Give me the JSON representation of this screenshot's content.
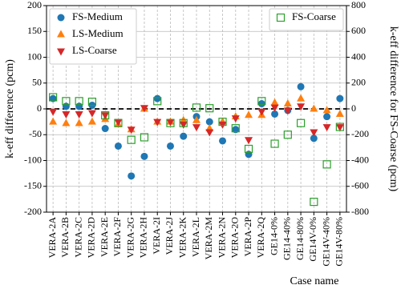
{
  "chart_data": {
    "type": "scatter",
    "categories": [
      "VERA-2A",
      "VERA-2B",
      "VERA-2C",
      "VERA-2D",
      "VERA-2E",
      "VERA-2F",
      "VERA-2G",
      "VERA-2H",
      "VERA-2I",
      "VERA-2J",
      "VERA-2K",
      "VERA-2L",
      "VERA-2M",
      "VERA-2N",
      "VERA-2O",
      "VERA-2P",
      "VERA-2Q",
      "GE14-0%",
      "GE14-40%",
      "GE14-80%",
      "GE14V-0%",
      "GE14V-40%",
      "GE14V-80%"
    ],
    "series": [
      {
        "name": "FS-Medium",
        "color": "#1f77b4",
        "marker": "circle",
        "values": [
          20,
          5,
          5,
          7,
          -38,
          -72,
          -130,
          -92,
          20,
          -72,
          -53,
          -15,
          -25,
          -62,
          -40,
          -88,
          10,
          -10,
          -3,
          43,
          -57,
          -15,
          20
        ]
      },
      {
        "name": "LS-Medium",
        "color": "#ff7f0e",
        "marker": "triangle-up",
        "values": [
          -25,
          -28,
          -28,
          -25,
          -20,
          -30,
          -40,
          0,
          -25,
          -25,
          -22,
          -22,
          -38,
          -25,
          -15,
          -12,
          -12,
          12,
          10,
          20,
          0,
          -3,
          -10
        ]
      },
      {
        "name": "LS-Coarse",
        "color": "#d62728",
        "marker": "triangle-down",
        "values": [
          -5,
          -10,
          -10,
          -8,
          -12,
          -25,
          -40,
          2,
          -25,
          -25,
          -30,
          -35,
          -45,
          -30,
          -18,
          -60,
          -5,
          3,
          -3,
          5,
          -45,
          -35,
          -35
        ]
      },
      {
        "name": "FS-Coarse",
        "color": "#2ca02c",
        "marker": "square-open",
        "axis": "y2",
        "values": [
          90,
          60,
          60,
          55,
          -50,
          -110,
          -240,
          -220,
          60,
          -110,
          -110,
          10,
          5,
          -100,
          -150,
          -310,
          60,
          -270,
          -200,
          -110,
          -720,
          -430,
          -140
        ]
      }
    ],
    "xlabel": "Case name",
    "ylabel": "k-eff difference (pcm)",
    "y2label": "k-eff difference for FS-Coarse (pcm)",
    "ylim": [
      -200,
      200
    ],
    "yticks": [
      -200,
      -150,
      -100,
      -50,
      0,
      50,
      100,
      150,
      200
    ],
    "y2lim": [
      -800,
      800
    ],
    "y2ticks": [
      -800,
      -600,
      -400,
      -200,
      0,
      200,
      400,
      600,
      800
    ],
    "hline": 0,
    "grid": true
  }
}
